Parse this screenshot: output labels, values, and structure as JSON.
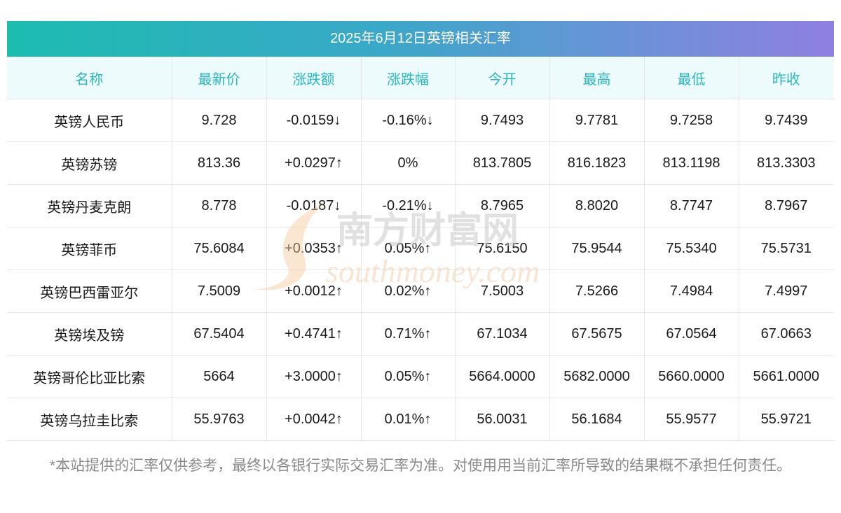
{
  "title": "2025年6月12日英镑相关汇率",
  "columns": [
    "名称",
    "最新价",
    "涨跌额",
    "涨跌幅",
    "今开",
    "最高",
    "最低",
    "昨收"
  ],
  "rows": [
    {
      "name": "英镑人民币",
      "latest": "9.728",
      "change": "-0.0159↓",
      "pct": "-0.16%↓",
      "open": "9.7493",
      "high": "9.7781",
      "low": "9.7258",
      "prev": "9.7439",
      "trend": "down"
    },
    {
      "name": "英镑苏镑",
      "latest": "813.36",
      "change": "+0.0297↑",
      "pct": "0%",
      "open": "813.7805",
      "high": "816.1823",
      "low": "813.1198",
      "prev": "813.3303",
      "trend": "flat_up"
    },
    {
      "name": "英镑丹麦克朗",
      "latest": "8.778",
      "change": "-0.0187↓",
      "pct": "-0.21%↓",
      "open": "8.7965",
      "high": "8.8020",
      "low": "8.7747",
      "prev": "8.7967",
      "trend": "down"
    },
    {
      "name": "英镑菲币",
      "latest": "75.6084",
      "change": "+0.0353↑",
      "pct": "0.05%↑",
      "open": "75.6150",
      "high": "75.9544",
      "low": "75.5340",
      "prev": "75.5731",
      "trend": "up"
    },
    {
      "name": "英镑巴西雷亚尔",
      "latest": "7.5009",
      "change": "+0.0012↑",
      "pct": "0.02%↑",
      "open": "7.5003",
      "high": "7.5266",
      "low": "7.4984",
      "prev": "7.4997",
      "trend": "up"
    },
    {
      "name": "英镑埃及镑",
      "latest": "67.5404",
      "change": "+0.4741↑",
      "pct": "0.71%↑",
      "open": "67.1034",
      "high": "67.5675",
      "low": "67.0564",
      "prev": "67.0663",
      "trend": "up"
    },
    {
      "name": "英镑哥伦比亚比索",
      "latest": "5664",
      "change": "+3.0000↑",
      "pct": "0.05%↑",
      "open": "5664.0000",
      "high": "5682.0000",
      "low": "5660.0000",
      "prev": "5661.0000",
      "trend": "up"
    },
    {
      "name": "英镑乌拉圭比索",
      "latest": "55.9763",
      "change": "+0.0042↑",
      "pct": "0.01%↑",
      "open": "56.0031",
      "high": "56.1684",
      "low": "55.9577",
      "prev": "55.9721",
      "trend": "up"
    }
  ],
  "note": "*本站提供的汇率仅供参考，最终以各银行实际交易汇率为准。对使用用当前汇率所导致的结果概不承担任何责任。",
  "watermark": {
    "cn": "南方财富网",
    "en": "southmoney.com"
  },
  "colors": {
    "up": "#ee1111",
    "down": "#128a12",
    "header_text": "#2ab6c0",
    "header_bg": "#eefbfd"
  }
}
